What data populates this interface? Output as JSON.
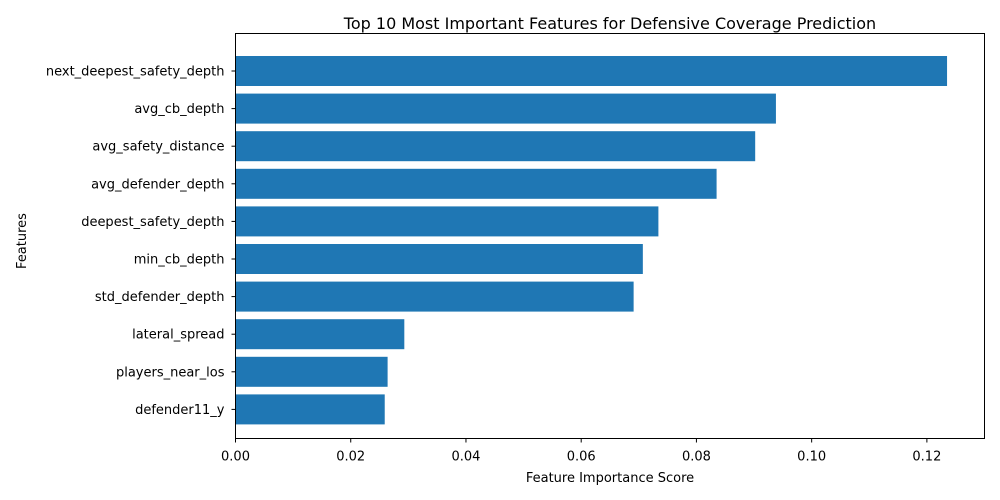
{
  "chart_data": {
    "type": "bar",
    "orientation": "horizontal",
    "title": "Top 10 Most Important Features for Defensive Coverage Prediction",
    "xlabel": "Feature Importance Score",
    "ylabel": "Features",
    "categories": [
      "next_deepest_safety_depth",
      "avg_cb_depth",
      "avg_safety_distance",
      "avg_defender_depth",
      "deepest_safety_depth",
      "min_cb_depth",
      "std_defender_depth",
      "lateral_spread",
      "players_near_los",
      "defender11_y"
    ],
    "values": [
      0.1235,
      0.0938,
      0.0902,
      0.0835,
      0.0734,
      0.0707,
      0.0691,
      0.0293,
      0.0264,
      0.0259
    ],
    "xlim": [
      0,
      0.13
    ],
    "xticks": [
      "0.00",
      "0.02",
      "0.04",
      "0.06",
      "0.08",
      "0.10",
      "0.12"
    ],
    "xtick_values": [
      0,
      0.02,
      0.04,
      0.06,
      0.08,
      0.1,
      0.12
    ],
    "grid": false,
    "bar_color": "#1f77b4"
  }
}
